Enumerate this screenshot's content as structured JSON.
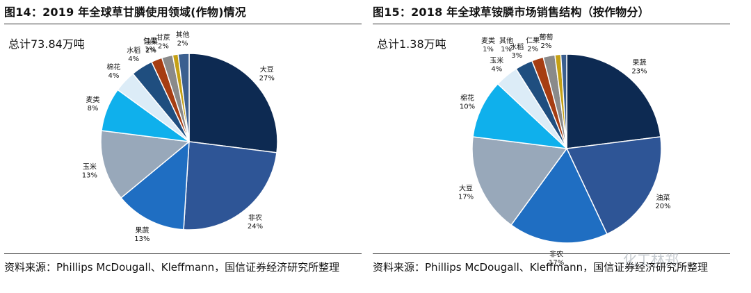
{
  "panels": [
    {
      "title": "图14：2019 年全球草甘膦使用领域(作物)情况",
      "total": "总计73.84万吨",
      "source": "资料来源：Phillips McDougall、Kleffmann，国信证券经济研究所整理"
    },
    {
      "title": "图15：2018 年全球草铵膦市场销售结构（按作物分）",
      "total": "总计1.38万吨",
      "source": "资料来源：Phillips McDougall、Kleffmann，国信证券经济研究所整理"
    }
  ],
  "watermark": "化工林郑",
  "chart_data": [
    {
      "type": "pie",
      "title": "2019 年全球草甘膦使用领域(作物)情况",
      "categories": [
        "大豆",
        "非农",
        "果蔬",
        "玉米",
        "麦类",
        "棉花",
        "水稻",
        "油菜",
        "甘蔗",
        "仁果",
        "其他"
      ],
      "values": [
        27,
        24,
        13,
        13,
        8,
        4,
        4,
        2,
        2,
        1,
        2
      ],
      "labels": [
        "27%",
        "24%",
        "13%",
        "13%",
        "8%",
        "4%",
        "4%",
        "2%",
        "2%",
        "1%",
        "2%"
      ],
      "colors": [
        "#0d2a52",
        "#2e5596",
        "#1f6ec2",
        "#98a8ba",
        "#0fb0ec",
        "#dcecf7",
        "#1f4e7f",
        "#a63d12",
        "#8a8a8a",
        "#c5a015",
        "#3b5f8f"
      ],
      "start_angle": 0,
      "direction": "clockwise"
    },
    {
      "type": "pie",
      "title": "2018 年全球草铵膦市场销售结构（按作物分）",
      "categories": [
        "果蔬",
        "油菜",
        "非农",
        "大豆",
        "棉花",
        "玉米",
        "水稻",
        "仁果",
        "葡萄",
        "麦类",
        "其他"
      ],
      "values": [
        23,
        20,
        17,
        17,
        10,
        4,
        3,
        2,
        2,
        1,
        1
      ],
      "labels": [
        "23%",
        "20%",
        "17%",
        "17%",
        "10%",
        "4%",
        "3%",
        "2%",
        "2%",
        "1%",
        "1%"
      ],
      "colors": [
        "#0d2a52",
        "#2e5596",
        "#1f6ec2",
        "#98a8ba",
        "#0fb0ec",
        "#dcecf7",
        "#1f4e7f",
        "#a63d12",
        "#8a8a8a",
        "#c5a015",
        "#3b5f8f"
      ],
      "start_angle": 0,
      "direction": "clockwise"
    }
  ]
}
